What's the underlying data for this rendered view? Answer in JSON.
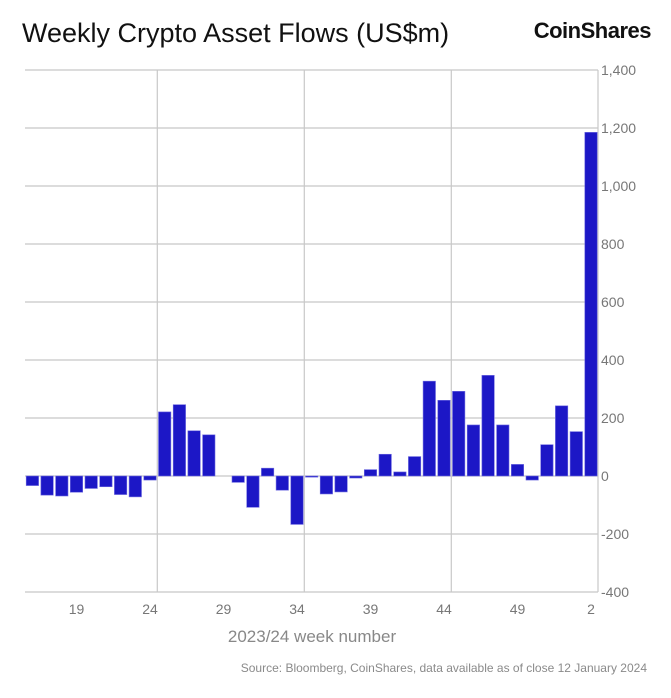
{
  "chart_data": {
    "type": "bar",
    "title": "Weekly Crypto Asset Flows (US$m)",
    "xlabel": "2023/24 week number",
    "ylabel": "",
    "ylim": [
      -400,
      1400
    ],
    "yticks": [
      -400,
      -200,
      0,
      200,
      400,
      600,
      800,
      1000,
      1200,
      1400
    ],
    "ytick_labels": [
      "-400",
      "-200",
      "0",
      "200",
      "400",
      "600",
      "800",
      "1,000",
      "1,200",
      "1,400"
    ],
    "yaxis_position": "right",
    "grid": true,
    "categories": [
      "16",
      "17",
      "18",
      "19",
      "20",
      "21",
      "22",
      "23",
      "24",
      "25",
      "26",
      "27",
      "28",
      "29",
      "30",
      "31",
      "32",
      "33",
      "34",
      "35",
      "36",
      "37",
      "38",
      "39",
      "40",
      "41",
      "42",
      "43",
      "44",
      "45",
      "46",
      "47",
      "48",
      "49",
      "50",
      "51",
      "52",
      "1",
      "2"
    ],
    "xtick_labels": [
      "19",
      "24",
      "29",
      "34",
      "39",
      "44",
      "49",
      "2"
    ],
    "values": [
      -33,
      -66,
      -69,
      -56,
      -43,
      -37,
      -64,
      -72,
      -14,
      221,
      246,
      156,
      142,
      0,
      -22,
      -108,
      27,
      -49,
      -167,
      -4,
      -62,
      -55,
      -7,
      22,
      75,
      14,
      67,
      327,
      261,
      292,
      176,
      347,
      176,
      40,
      -14,
      108,
      242,
      153,
      1185
    ],
    "bar_color": "#1c17c6"
  },
  "logo_text": "CoinShares",
  "source": "Source: Bloomberg, CoinShares, data available as of close 12 January 2024"
}
